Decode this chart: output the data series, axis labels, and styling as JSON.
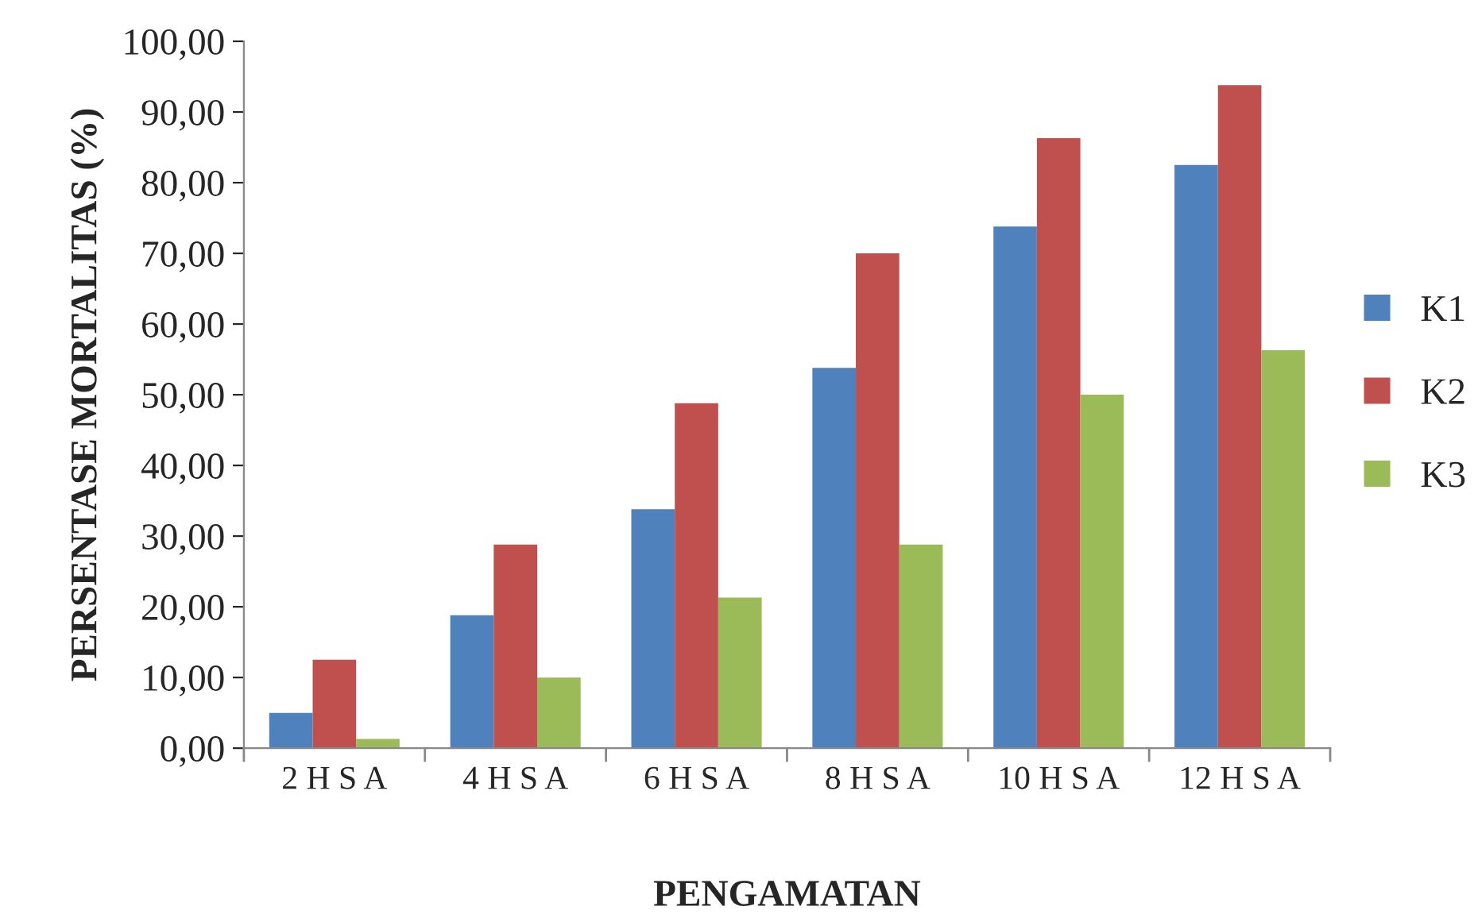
{
  "chart_data": {
    "type": "bar",
    "xlabel": "PENGAMATAN",
    "ylabel": "PERSENTASE MORTALITAS (%)",
    "categories": [
      "2 H S A",
      "4 H S A",
      "6 H S A",
      "8 H S A",
      "10 H S A",
      "12 H S A"
    ],
    "series": [
      {
        "name": "K1",
        "color": "#4f81bd",
        "values": [
          5.0,
          18.8,
          33.8,
          53.8,
          73.8,
          82.5
        ]
      },
      {
        "name": "K2",
        "color": "#c0504d",
        "values": [
          12.5,
          28.8,
          48.8,
          70.0,
          86.3,
          93.8
        ]
      },
      {
        "name": "K3",
        "color": "#9bbb59",
        "values": [
          1.3,
          10.0,
          21.3,
          28.8,
          50.0,
          56.3
        ]
      }
    ],
    "ylim": [
      0,
      100
    ],
    "yticks": [
      {
        "value": 0,
        "label": "0,00"
      },
      {
        "value": 10,
        "label": "10,00"
      },
      {
        "value": 20,
        "label": "20,00"
      },
      {
        "value": 30,
        "label": "30,00"
      },
      {
        "value": 40,
        "label": "40,00"
      },
      {
        "value": 50,
        "label": "50,00"
      },
      {
        "value": 60,
        "label": "60,00"
      },
      {
        "value": 70,
        "label": "70,00"
      },
      {
        "value": 80,
        "label": "80,00"
      },
      {
        "value": 90,
        "label": "90,00"
      },
      {
        "value": 100,
        "label": "100,00"
      }
    ],
    "grid": false,
    "legend": "right"
  }
}
